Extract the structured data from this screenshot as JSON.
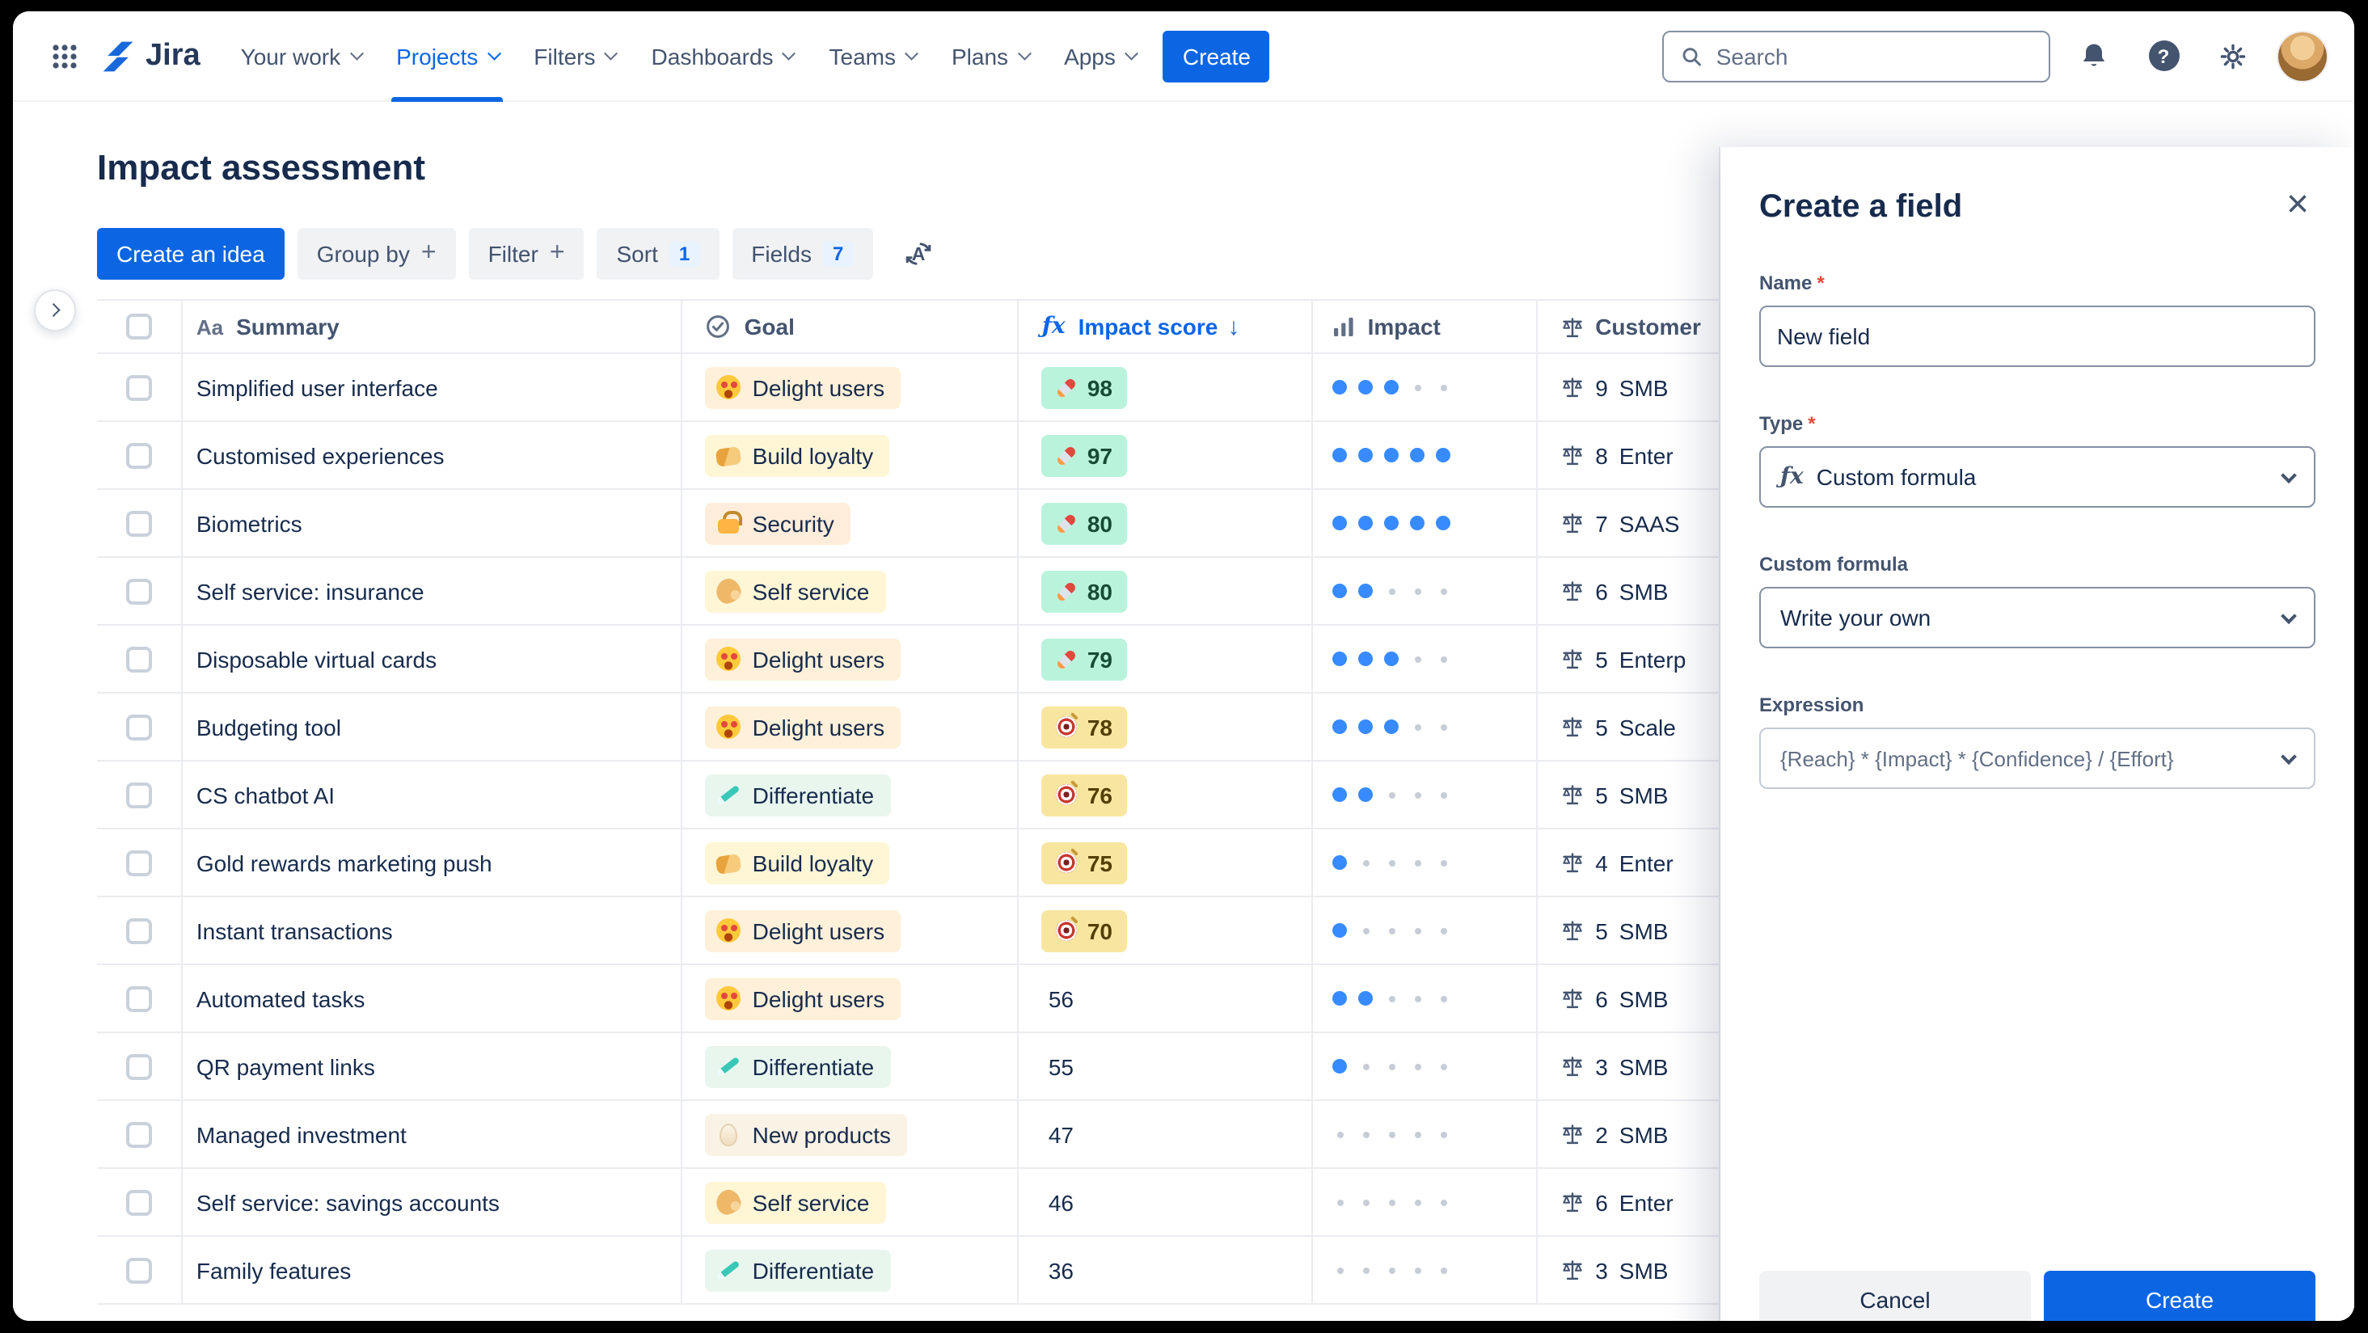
{
  "nav": {
    "logo": "Jira",
    "items": [
      {
        "label": "Your work"
      },
      {
        "label": "Projects",
        "active": true
      },
      {
        "label": "Filters"
      },
      {
        "label": "Dashboards"
      },
      {
        "label": "Teams"
      },
      {
        "label": "Plans"
      },
      {
        "label": "Apps"
      }
    ],
    "create_button": "Create",
    "search_placeholder": "Search"
  },
  "page": {
    "title": "Impact assessment",
    "toolbar": {
      "create_idea": "Create an idea",
      "group_by": "Group by",
      "filter": "Filter",
      "sort": "Sort",
      "sort_count": "1",
      "fields": "Fields",
      "fields_count": "7"
    }
  },
  "table": {
    "headers": {
      "summary": "Summary",
      "goal": "Goal",
      "impact_score": "Impact score",
      "impact": "Impact",
      "customer": "Customer"
    },
    "rows": [
      {
        "summary": "Simplified user interface",
        "goal": "Delight users",
        "goal_icon": "heart-eyes",
        "goal_color": "#FFF0D9",
        "score": 98,
        "score_badge": "green",
        "score_icon": "rocket",
        "impact_dots": 3,
        "customer_value": 9,
        "customer_segment": "SMB"
      },
      {
        "summary": "Customised experiences",
        "goal": "Build loyalty",
        "goal_icon": "handshake",
        "goal_color": "#FFF6D6",
        "score": 97,
        "score_badge": "green",
        "score_icon": "rocket",
        "impact_dots": 5,
        "customer_value": 8,
        "customer_segment": "Enter"
      },
      {
        "summary": "Biometrics",
        "goal": "Security",
        "goal_icon": "lock",
        "goal_color": "#FFEDDB",
        "score": 80,
        "score_badge": "green",
        "score_icon": "rocket",
        "impact_dots": 5,
        "customer_value": 7,
        "customer_segment": "SAAS"
      },
      {
        "summary": "Self service: insurance",
        "goal": "Self service",
        "goal_icon": "bicep",
        "goal_color": "#FFF6D6",
        "score": 80,
        "score_badge": "green",
        "score_icon": "rocket",
        "impact_dots": 2,
        "customer_value": 6,
        "customer_segment": "SMB"
      },
      {
        "summary": "Disposable virtual cards",
        "goal": "Delight users",
        "goal_icon": "heart-eyes",
        "goal_color": "#FFF0D9",
        "score": 79,
        "score_badge": "green",
        "score_icon": "rocket",
        "impact_dots": 3,
        "customer_value": 5,
        "customer_segment": "Enterp"
      },
      {
        "summary": "Budgeting tool",
        "goal": "Delight users",
        "goal_icon": "heart-eyes",
        "goal_color": "#FFF0D9",
        "score": 78,
        "score_badge": "yellow",
        "score_icon": "dart",
        "impact_dots": 3,
        "customer_value": 5,
        "customer_segment": "Scale"
      },
      {
        "summary": "CS chatbot AI",
        "goal": "Differentiate",
        "goal_icon": "toothbrush",
        "goal_color": "#E9F6EE",
        "score": 76,
        "score_badge": "yellow",
        "score_icon": "dart",
        "impact_dots": 2,
        "customer_value": 5,
        "customer_segment": "SMB"
      },
      {
        "summary": "Gold rewards marketing push",
        "goal": "Build loyalty",
        "goal_icon": "handshake",
        "goal_color": "#FFF6D6",
        "score": 75,
        "score_badge": "yellow",
        "score_icon": "dart",
        "impact_dots": 1,
        "customer_value": 4,
        "customer_segment": "Enter"
      },
      {
        "summary": "Instant transactions",
        "goal": "Delight users",
        "goal_icon": "heart-eyes",
        "goal_color": "#FFF0D9",
        "score": 70,
        "score_badge": "yellow",
        "score_icon": "dart",
        "impact_dots": 1,
        "customer_value": 5,
        "customer_segment": "SMB"
      },
      {
        "summary": "Automated tasks",
        "goal": "Delight users",
        "goal_icon": "heart-eyes",
        "goal_color": "#FFF0D9",
        "score": 56,
        "score_badge": null,
        "score_icon": null,
        "impact_dots": 2,
        "customer_value": 6,
        "customer_segment": "SMB"
      },
      {
        "summary": "QR payment links",
        "goal": "Differentiate",
        "goal_icon": "toothbrush",
        "goal_color": "#E9F6EE",
        "score": 55,
        "score_badge": null,
        "score_icon": null,
        "impact_dots": 1,
        "customer_value": 3,
        "customer_segment": "SMB"
      },
      {
        "summary": "Managed investment",
        "goal": "New products",
        "goal_icon": "egg",
        "goal_color": "#FAF2E4",
        "score": 47,
        "score_badge": null,
        "score_icon": null,
        "impact_dots": 0,
        "customer_value": 2,
        "customer_segment": "SMB"
      },
      {
        "summary": "Self service: savings accounts",
        "goal": "Self service",
        "goal_icon": "bicep",
        "goal_color": "#FFF6D6",
        "score": 46,
        "score_badge": null,
        "score_icon": null,
        "impact_dots": 0,
        "customer_value": 6,
        "customer_segment": "Enter"
      },
      {
        "summary": "Family features",
        "goal": "Differentiate",
        "goal_icon": "toothbrush",
        "goal_color": "#E9F6EE",
        "score": 36,
        "score_badge": null,
        "score_icon": null,
        "impact_dots": 0,
        "customer_value": 3,
        "customer_segment": "SMB"
      }
    ]
  },
  "panel": {
    "title": "Create a field",
    "close_glyph": "×",
    "fields": {
      "name": {
        "label": "Name",
        "required": "*",
        "value": "New field"
      },
      "type": {
        "label": "Type",
        "required": "*",
        "value": "Custom formula"
      },
      "custom_formula": {
        "label": "Custom formula",
        "value": "Write your own"
      },
      "expression": {
        "label": "Expression",
        "value": "{Reach} * {Impact} * {Confidence} / {Effort}"
      }
    },
    "cancel_button": "Cancel",
    "create_button": "Create"
  },
  "icons": {
    "app_switcher": "grid-icon",
    "search": "magnifier-icon",
    "notifications": "bell-icon",
    "help": "question-circle-icon",
    "settings": "gear-icon",
    "profile": "avatar",
    "score_high": "rocket-icon",
    "score_medium": "dart-target-icon",
    "customer_field": "scale-icon",
    "toolbar_misc": "auto-sort-a-icon",
    "sort_direction": "arrow-down-icon"
  },
  "colors": {
    "accent_blue": "#0C66E4",
    "score_green_bg": "#BAF3DB",
    "score_green_text": "#164B35",
    "score_yellow_bg": "#F8E6A0",
    "score_yellow_text": "#533F04",
    "impact_dot_filled": "#388BFF",
    "jira_logo_blue": "#1868DB"
  }
}
